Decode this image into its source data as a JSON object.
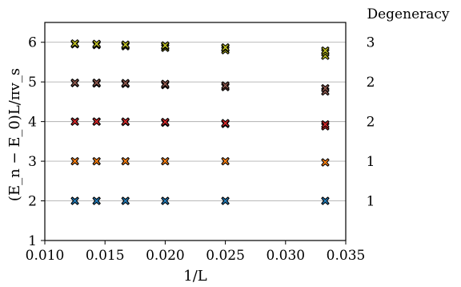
{
  "chart_data": {
    "type": "scatter",
    "title": "",
    "xlabel": "1/L",
    "ylabel": "(E_n − E_0)L/πv_s",
    "xlim": [
      0.01,
      0.035
    ],
    "ylim": [
      1,
      6.5
    ],
    "xticks": [
      "0.010",
      "0.015",
      "0.020",
      "0.025",
      "0.030",
      "0.035"
    ],
    "yticks": [
      "1",
      "2",
      "3",
      "4",
      "5",
      "6"
    ],
    "grid": "horizontal",
    "marker": "X",
    "degeneracy_header": "Degeneracy",
    "degeneracy": [
      {
        "level": 2,
        "value": "1"
      },
      {
        "level": 3,
        "value": "1"
      },
      {
        "level": 4,
        "value": "2"
      },
      {
        "level": 5,
        "value": "2"
      },
      {
        "level": 6,
        "value": "3"
      }
    ],
    "x": [
      0.0125,
      0.0143,
      0.0167,
      0.02,
      0.025,
      0.0333
    ],
    "series": [
      {
        "color": "#1f77b4",
        "values": [
          2.0,
          2.0,
          2.0,
          2.0,
          2.0,
          2.0
        ]
      },
      {
        "color": "#ff7f0e",
        "values": [
          3.0,
          3.0,
          3.0,
          3.0,
          3.0,
          2.97
        ]
      },
      {
        "color": "#d62728",
        "values": [
          4.0,
          4.0,
          3.99,
          3.97,
          3.94,
          3.88
        ]
      },
      {
        "color": "#d62728",
        "values": [
          4.0,
          4.0,
          4.0,
          3.99,
          3.96,
          3.93
        ]
      },
      {
        "color": "#8c564b",
        "values": [
          4.97,
          4.96,
          4.95,
          4.92,
          4.87,
          4.76
        ]
      },
      {
        "color": "#8c564b",
        "values": [
          4.98,
          4.98,
          4.97,
          4.95,
          4.91,
          4.84
        ]
      },
      {
        "color": "#bcbd22",
        "values": [
          5.95,
          5.93,
          5.9,
          5.86,
          5.8,
          5.66
        ]
      },
      {
        "color": "#bcbd22",
        "values": [
          5.96,
          5.95,
          5.93,
          5.9,
          5.85,
          5.74
        ]
      },
      {
        "color": "#bcbd22",
        "values": [
          5.97,
          5.96,
          5.94,
          5.92,
          5.87,
          5.79
        ]
      }
    ]
  }
}
